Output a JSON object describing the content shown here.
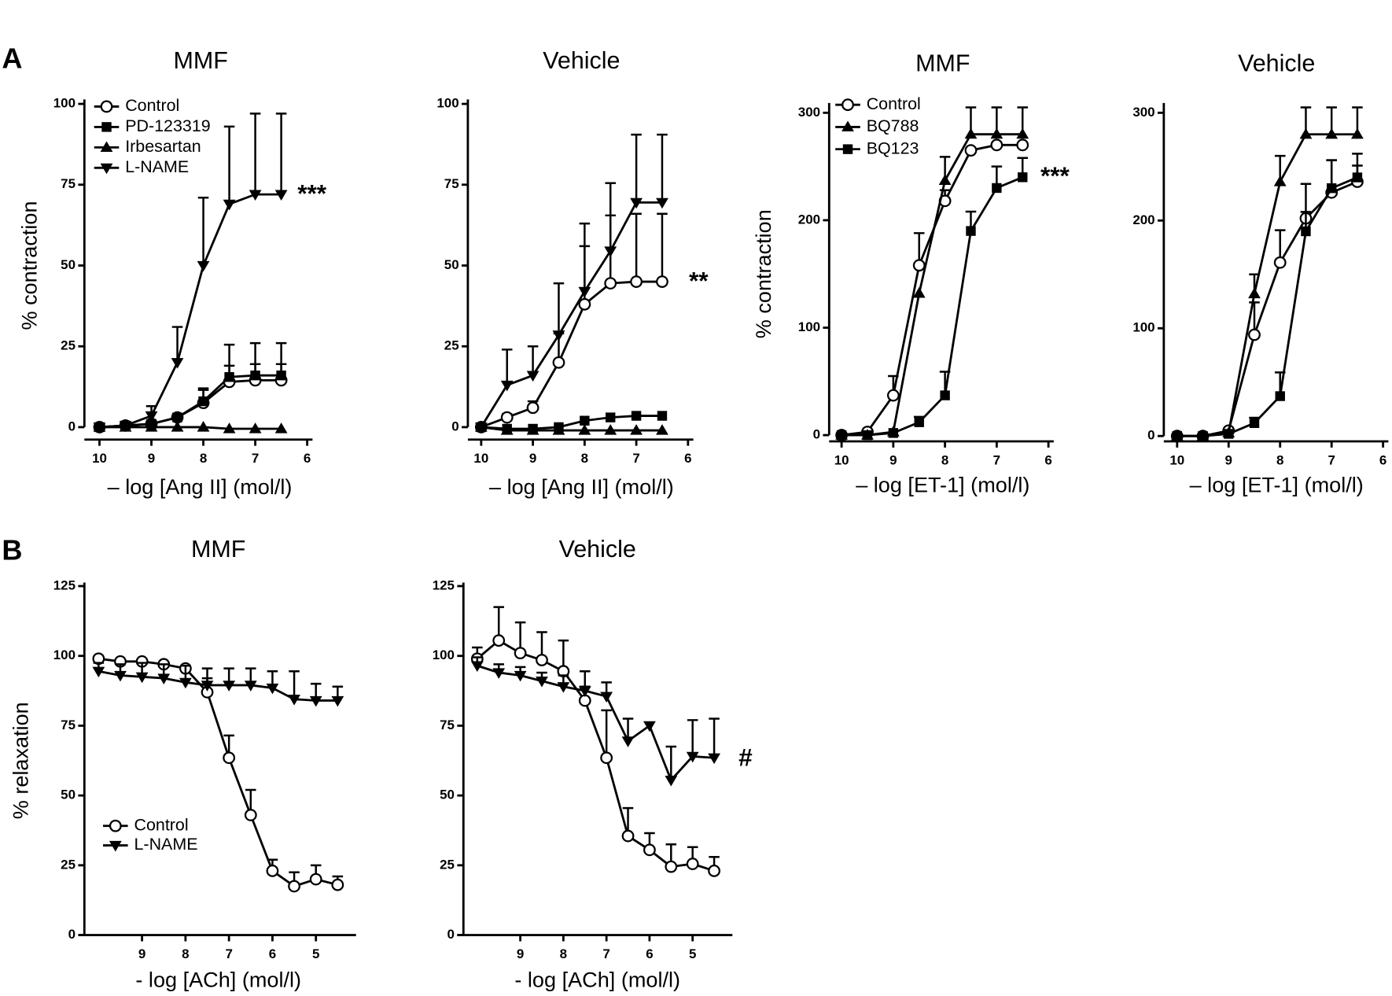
{
  "panel_labels": [
    "A",
    "B"
  ],
  "chart_data": [
    {
      "type": "line",
      "title": "MMF",
      "x_label": "– log [Ang II] (mol/l)",
      "y_label": "% contraction",
      "annotation": "***",
      "legend": true,
      "x": [
        10,
        9.5,
        9,
        8.5,
        8,
        7.5,
        7,
        6.5
      ],
      "xlim": [
        10,
        6
      ],
      "xticks": [
        10,
        9,
        8,
        7,
        6
      ],
      "ylim": [
        0,
        100
      ],
      "yticks": [
        0,
        25,
        50,
        75,
        100
      ],
      "series": [
        {
          "name": "Control",
          "color": "#000000",
          "marker": "circle-open",
          "values": [
            0,
            0.5,
            1,
            3,
            7.5,
            14,
            14.5,
            14.5
          ],
          "errors": [
            0,
            0,
            0,
            0,
            4,
            5,
            5,
            5
          ]
        },
        {
          "name": "PD-123319",
          "color": "#000000",
          "marker": "square",
          "values": [
            0,
            0.5,
            1,
            3,
            8,
            15.5,
            16,
            16
          ],
          "errors": [
            0,
            0,
            1,
            1,
            4,
            10,
            10,
            10
          ]
        },
        {
          "name": "Irbesartan",
          "color": "#000000",
          "marker": "triangle-up",
          "values": [
            0,
            0,
            0,
            0,
            0,
            -0.5,
            -0.5,
            -0.5
          ],
          "errors": [
            0,
            0,
            0,
            0,
            0,
            0,
            0,
            0
          ]
        },
        {
          "name": "L-NAME",
          "color": "#000000",
          "marker": "triangle-down",
          "values": [
            0,
            0.5,
            3.5,
            20,
            50,
            69,
            72,
            72
          ],
          "errors": [
            0,
            0.5,
            3,
            11,
            21,
            24,
            25,
            25
          ]
        }
      ]
    },
    {
      "type": "line",
      "title": "Vehicle",
      "x_label": "– log [Ang II] (mol/l)",
      "annotation": "**",
      "legend": false,
      "x": [
        10,
        9.5,
        9,
        8.5,
        8,
        7.5,
        7,
        6.5
      ],
      "xlim": [
        10,
        6
      ],
      "xticks": [
        10,
        9,
        8,
        7,
        6
      ],
      "ylim": [
        0,
        100
      ],
      "yticks": [
        0,
        25,
        50,
        75,
        100
      ],
      "series": [
        {
          "name": "Control",
          "color": "#000000",
          "marker": "circle-open",
          "values": [
            0,
            3,
            6,
            20,
            38,
            44.5,
            45,
            45
          ],
          "errors": [
            0,
            1,
            2,
            9,
            18,
            21,
            21,
            21
          ]
        },
        {
          "name": "PD-123319",
          "color": "#000000",
          "marker": "square",
          "values": [
            0,
            -0.5,
            -0.5,
            0,
            2,
            3,
            3.5,
            3.5
          ],
          "errors": [
            0,
            0,
            0,
            0,
            0,
            0,
            0,
            0
          ]
        },
        {
          "name": "Irbesartan",
          "color": "#000000",
          "marker": "triangle-up",
          "values": [
            0,
            -1,
            -1,
            -1,
            -1,
            -1,
            -1,
            -1
          ],
          "errors": [
            0,
            0,
            0,
            0,
            0,
            0,
            0,
            0
          ]
        },
        {
          "name": "L-NAME",
          "color": "#000000",
          "marker": "triangle-down",
          "values": [
            0,
            13,
            16,
            28.5,
            42,
            54.5,
            69.5,
            69.5
          ],
          "errors": [
            0,
            11,
            9,
            16,
            21,
            21,
            21,
            21
          ]
        }
      ]
    },
    {
      "type": "line",
      "title": "MMF",
      "x_label": "– log [ET-1] (mol/l)",
      "y_label": "% contraction",
      "annotation": "***",
      "legend": true,
      "x": [
        10,
        9.5,
        9,
        8.5,
        8,
        7.5,
        7,
        6.5
      ],
      "xlim": [
        10,
        6
      ],
      "xticks": [
        10,
        9,
        8,
        7,
        6
      ],
      "ylim": [
        0,
        300
      ],
      "yticks": [
        0,
        100,
        200,
        300
      ],
      "series": [
        {
          "name": "Control",
          "color": "#000000",
          "marker": "circle-open",
          "values": [
            0,
            3,
            37,
            158,
            218,
            265,
            270,
            270
          ],
          "errors": [
            0,
            0,
            18,
            30,
            10,
            0,
            0,
            0
          ]
        },
        {
          "name": "BQ788",
          "color": "#000000",
          "marker": "triangle-up",
          "values": [
            0,
            0,
            3,
            132,
            237,
            280,
            280,
            280
          ],
          "errors": [
            0,
            0,
            0,
            0,
            22,
            25,
            25,
            25
          ]
        },
        {
          "name": "BQ123",
          "color": "#000000",
          "marker": "square",
          "values": [
            0,
            0,
            2,
            12,
            37,
            190,
            230,
            240
          ],
          "errors": [
            0,
            0,
            0,
            5,
            22,
            18,
            20,
            18
          ]
        }
      ]
    },
    {
      "type": "line",
      "title": "Vehicle",
      "x_label": "– log [ET-1] (mol/l)",
      "legend": false,
      "x": [
        10,
        9.5,
        9,
        8.5,
        8,
        7.5,
        7,
        6.5
      ],
      "xlim": [
        10,
        6
      ],
      "xticks": [
        10,
        9,
        8,
        7,
        6
      ],
      "ylim": [
        0,
        300
      ],
      "yticks": [
        0,
        100,
        200,
        300
      ],
      "series": [
        {
          "name": "Control",
          "color": "#000000",
          "marker": "circle-open",
          "values": [
            0,
            0,
            5,
            94,
            161,
            202,
            226,
            236
          ],
          "errors": [
            0,
            0,
            0,
            30,
            30,
            32,
            30,
            15
          ]
        },
        {
          "name": "BQ788",
          "color": "#000000",
          "marker": "triangle-up",
          "values": [
            0,
            0,
            3,
            132,
            236,
            280,
            280,
            280
          ],
          "errors": [
            0,
            0,
            0,
            18,
            24,
            25,
            25,
            25
          ]
        },
        {
          "name": "BQ123",
          "color": "#000000",
          "marker": "square",
          "values": [
            0,
            0,
            2,
            12,
            37,
            190,
            230,
            240
          ],
          "errors": [
            0,
            0,
            0,
            5,
            22,
            18,
            26,
            22
          ]
        }
      ]
    },
    {
      "type": "line",
      "title": "MMF",
      "x_label": "- log [ACh] (mol/l)",
      "y_label": "% relaxation",
      "legend": true,
      "x": [
        10,
        9.5,
        9,
        8.5,
        8,
        7.5,
        7,
        6.5,
        6,
        5.5,
        5,
        4.5
      ],
      "xlim": [
        10.3,
        4.2
      ],
      "xticks": [
        9,
        8,
        7,
        6,
        5
      ],
      "ylim": [
        0,
        125
      ],
      "yticks": [
        0,
        25,
        50,
        75,
        100,
        125
      ],
      "series": [
        {
          "name": "Control",
          "color": "#000000",
          "marker": "circle-open",
          "values": [
            99,
            98,
            98,
            97,
            95.5,
            87,
            63.5,
            43,
            23,
            17.5,
            20,
            18
          ],
          "errors": [
            0,
            0,
            0,
            0,
            0,
            5,
            8,
            9,
            4,
            5,
            5,
            3
          ]
        },
        {
          "name": "L-NAME",
          "color": "#000000",
          "marker": "triangle-down",
          "values": [
            94.5,
            93,
            92.5,
            92,
            90.5,
            89.5,
            89.5,
            89.5,
            88.5,
            84.5,
            84,
            84
          ],
          "errors": [
            3,
            4,
            5,
            5,
            6,
            6,
            6,
            6,
            6,
            10,
            6,
            5
          ]
        }
      ]
    },
    {
      "type": "line",
      "title": "Vehicle",
      "x_label": "- log [ACh] (mol/l)",
      "annotation": "#",
      "legend": false,
      "x": [
        10,
        9.5,
        9,
        8.5,
        8,
        7.5,
        7,
        6.5,
        6,
        5.5,
        5,
        4.5
      ],
      "xlim": [
        10.3,
        4.2
      ],
      "xticks": [
        9,
        8,
        7,
        6,
        5
      ],
      "ylim": [
        0,
        125
      ],
      "yticks": [
        0,
        25,
        50,
        75,
        100,
        125
      ],
      "series": [
        {
          "name": "Control",
          "color": "#000000",
          "marker": "circle-open",
          "values": [
            99,
            105.5,
            101,
            98.5,
            94.5,
            84,
            63.5,
            35.5,
            30.5,
            24.5,
            25.5,
            23
          ],
          "errors": [
            4,
            12,
            11,
            10,
            11,
            5,
            17,
            10,
            6,
            8,
            6,
            5
          ]
        },
        {
          "name": "L-NAME",
          "color": "#000000",
          "marker": "triangle-down",
          "values": [
            96.5,
            94,
            93,
            91,
            89,
            87.5,
            85.5,
            69.5,
            75,
            55.5,
            64,
            63.5
          ],
          "errors": [
            3,
            3,
            3,
            3,
            4,
            7,
            5,
            8,
            0,
            12,
            13,
            14
          ]
        }
      ]
    }
  ]
}
